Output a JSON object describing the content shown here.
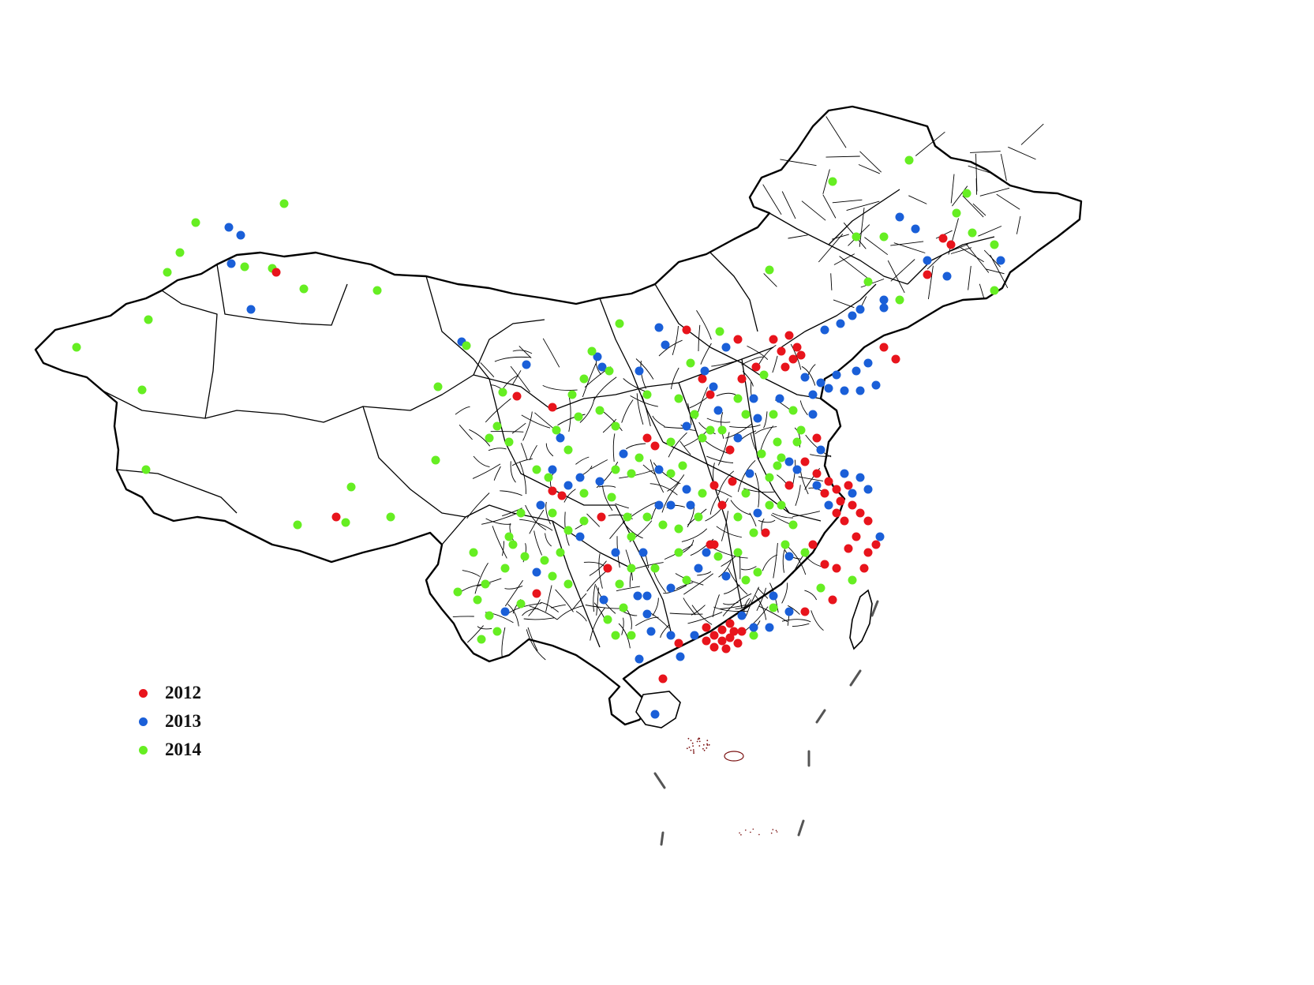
{
  "legend": {
    "items": [
      {
        "label": "2012",
        "color": "#e8141c"
      },
      {
        "label": "2013",
        "color": "#1a5fd8"
      },
      {
        "label": "2014",
        "color": "#66ee22"
      }
    ]
  },
  "colors": {
    "map_fill": "#ffffff",
    "region_border": "#000000",
    "coast": "#555555",
    "island_dots": "#7a1010"
  }
}
